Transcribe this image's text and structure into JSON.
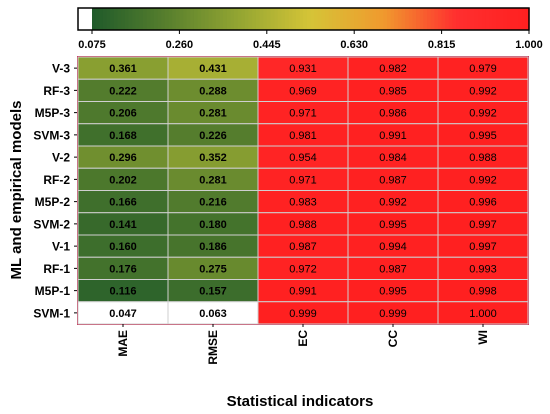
{
  "chart_data": {
    "type": "heatmap",
    "xlabel": "Statistical indicators",
    "ylabel": "ML and empirical models",
    "columns": [
      "MAE",
      "RMSE",
      "EC",
      "CC",
      "WI"
    ],
    "rows": [
      "V-3",
      "RF-3",
      "M5P-3",
      "SVM-3",
      "V-2",
      "RF-2",
      "M5P-2",
      "SVM-2",
      "V-1",
      "RF-1",
      "M5P-1",
      "SVM-1"
    ],
    "values": [
      [
        0.361,
        0.431,
        0.931,
        0.982,
        0.979
      ],
      [
        0.222,
        0.288,
        0.969,
        0.985,
        0.992
      ],
      [
        0.206,
        0.281,
        0.971,
        0.986,
        0.992
      ],
      [
        0.168,
        0.226,
        0.981,
        0.991,
        0.995
      ],
      [
        0.296,
        0.352,
        0.954,
        0.984,
        0.988
      ],
      [
        0.202,
        0.281,
        0.971,
        0.987,
        0.992
      ],
      [
        0.166,
        0.216,
        0.983,
        0.992,
        0.996
      ],
      [
        0.141,
        0.18,
        0.988,
        0.995,
        0.997
      ],
      [
        0.16,
        0.186,
        0.987,
        0.994,
        0.997
      ],
      [
        0.176,
        0.275,
        0.972,
        0.987,
        0.993
      ],
      [
        0.116,
        0.157,
        0.991,
        0.995,
        0.998
      ],
      [
        0.047,
        0.063,
        0.999,
        0.999,
        1.0
      ]
    ],
    "value_labels": [
      [
        "0.361",
        "0.431",
        "0.931",
        "0.982",
        "0.979"
      ],
      [
        "0.222",
        "0.288",
        "0.969",
        "0.985",
        "0.992"
      ],
      [
        "0.206",
        "0.281",
        "0.971",
        "0.986",
        "0.992"
      ],
      [
        "0.168",
        "0.226",
        "0.981",
        "0.991",
        "0.995"
      ],
      [
        "0.296",
        "0.352",
        "0.954",
        "0.984",
        "0.988"
      ],
      [
        "0.202",
        "0.281",
        "0.971",
        "0.987",
        "0.992"
      ],
      [
        "0.166",
        "0.216",
        "0.983",
        "0.992",
        "0.996"
      ],
      [
        "0.141",
        "0.180",
        "0.988",
        "0.995",
        "0.997"
      ],
      [
        "0.160",
        "0.186",
        "0.987",
        "0.994",
        "0.997"
      ],
      [
        "0.176",
        "0.275",
        "0.972",
        "0.987",
        "0.993"
      ],
      [
        "0.116",
        "0.157",
        "0.991",
        "0.995",
        "0.998"
      ],
      [
        "0.047",
        "0.063",
        "0.999",
        "0.999",
        "1.000"
      ]
    ],
    "colorbar": {
      "position": "top",
      "range": [
        0.075,
        1.0
      ],
      "ticks": [
        0.075,
        0.26,
        0.445,
        0.63,
        0.815,
        1.0
      ],
      "tick_labels": [
        "0.075",
        "0.260",
        "0.445",
        "0.630",
        "0.815",
        "1.000"
      ],
      "below_min_color": "#ffffff",
      "colors": [
        "#1f5a2a",
        "#567e2d",
        "#92a532",
        "#d5c437",
        "#f09a2e",
        "#ff2f2f",
        "#ff2020"
      ]
    },
    "grid_color": "#cfcfcf",
    "text_color": "#000000"
  }
}
